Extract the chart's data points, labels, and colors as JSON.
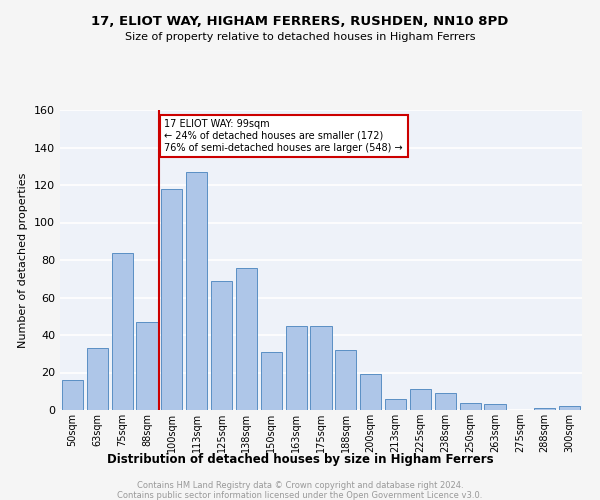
{
  "title": "17, ELIOT WAY, HIGHAM FERRERS, RUSHDEN, NN10 8PD",
  "subtitle": "Size of property relative to detached houses in Higham Ferrers",
  "xlabel": "Distribution of detached houses by size in Higham Ferrers",
  "ylabel": "Number of detached properties",
  "categories": [
    "50sqm",
    "63sqm",
    "75sqm",
    "88sqm",
    "100sqm",
    "113sqm",
    "125sqm",
    "138sqm",
    "150sqm",
    "163sqm",
    "175sqm",
    "188sqm",
    "200sqm",
    "213sqm",
    "225sqm",
    "238sqm",
    "250sqm",
    "263sqm",
    "275sqm",
    "288sqm",
    "300sqm"
  ],
  "values": [
    16,
    33,
    84,
    47,
    118,
    127,
    69,
    76,
    31,
    45,
    45,
    32,
    19,
    6,
    11,
    9,
    4,
    3,
    0,
    1,
    2
  ],
  "bar_color": "#aec6e8",
  "bar_edge_color": "#5a8fc4",
  "redline_index": 4,
  "annotation_line1": "17 ELIOT WAY: 99sqm",
  "annotation_line2": "← 24% of detached houses are smaller (172)",
  "annotation_line3": "76% of semi-detached houses are larger (548) →",
  "annotation_box_color": "#ffffff",
  "annotation_box_edge": "#cc0000",
  "redline_color": "#cc0000",
  "ylim": [
    0,
    160
  ],
  "yticks": [
    0,
    20,
    40,
    60,
    80,
    100,
    120,
    140,
    160
  ],
  "background_color": "#eef2f9",
  "grid_color": "#ffffff",
  "footer_line1": "Contains HM Land Registry data © Crown copyright and database right 2024.",
  "footer_line2": "Contains public sector information licensed under the Open Government Licence v3.0.",
  "footer_color": "#999999",
  "fig_facecolor": "#f5f5f5"
}
